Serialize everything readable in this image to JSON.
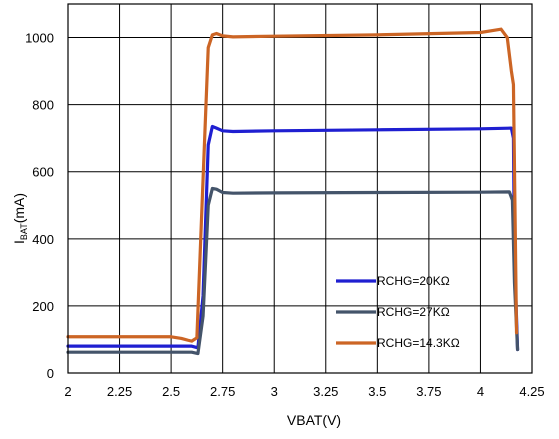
{
  "chart_data": {
    "type": "line",
    "xlabel": "VBAT(V)",
    "ylabel": {
      "main": "I",
      "sub": "BAT",
      "unit": "(mA)"
    },
    "xlim": [
      2,
      4.25
    ],
    "ylim": [
      0,
      1100
    ],
    "x_ticks": [
      2,
      2.25,
      2.5,
      2.75,
      3,
      3.25,
      3.5,
      3.75,
      4,
      4.25
    ],
    "x_tick_labels": [
      "2",
      "2.25",
      "2.5",
      "2.75",
      "3",
      "3.25",
      "3.5",
      "3.75",
      "4",
      "4.25"
    ],
    "y_ticks": [
      0,
      200,
      400,
      600,
      800,
      1000
    ],
    "y_tick_labels": [
      "0",
      "200",
      "400",
      "600",
      "800",
      "1000"
    ],
    "grid": true,
    "legend_position": "bottom-right",
    "series": [
      {
        "name": "RCHG=20KΩ",
        "color": "#1f1fd1",
        "x": [
          2.0,
          2.3,
          2.5,
          2.6,
          2.63,
          2.655,
          2.68,
          2.7,
          2.72,
          2.75,
          2.8,
          3.0,
          3.5,
          4.0,
          4.15,
          4.16,
          4.165,
          4.18
        ],
        "y": [
          80,
          80,
          80,
          80,
          75,
          230,
          680,
          735,
          730,
          722,
          720,
          722,
          725,
          728,
          730,
          700,
          350,
          70
        ]
      },
      {
        "name": "RCHG=27KΩ",
        "color": "#44546a",
        "x": [
          2.0,
          2.3,
          2.5,
          2.6,
          2.63,
          2.655,
          2.68,
          2.7,
          2.72,
          2.75,
          2.8,
          3.0,
          3.5,
          4.0,
          4.14,
          4.155,
          4.165,
          4.18
        ],
        "y": [
          62,
          62,
          62,
          62,
          58,
          170,
          500,
          550,
          548,
          538,
          536,
          537,
          538,
          539,
          540,
          515,
          270,
          70
        ]
      },
      {
        "name": "RCHG=14.3KΩ",
        "color": "#cc6525",
        "x": [
          2.0,
          2.3,
          2.5,
          2.55,
          2.58,
          2.6,
          2.625,
          2.65,
          2.68,
          2.7,
          2.72,
          2.75,
          2.8,
          3.0,
          3.5,
          4.0,
          4.07,
          4.1,
          4.13,
          4.15,
          4.16,
          4.175
        ],
        "y": [
          108,
          108,
          108,
          103,
          98,
          95,
          105,
          500,
          970,
          1008,
          1012,
          1005,
          1002,
          1004,
          1008,
          1015,
          1022,
          1025,
          1000,
          900,
          860,
          120
        ]
      }
    ]
  }
}
